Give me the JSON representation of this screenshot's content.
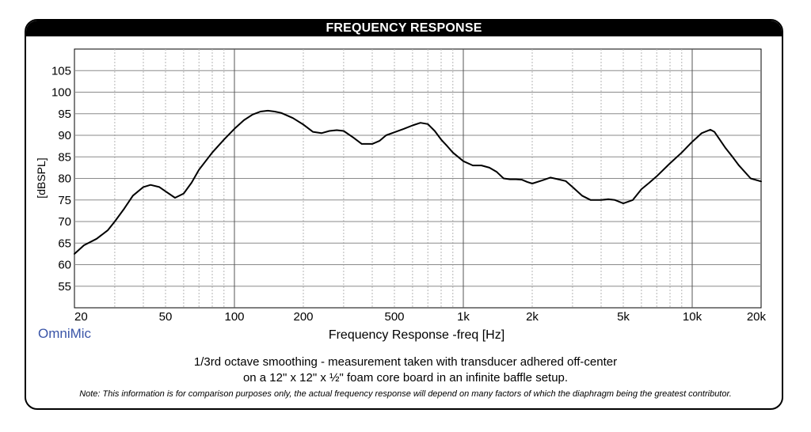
{
  "header": {
    "title": "FREQUENCY RESPONSE"
  },
  "brand": "OmniMic",
  "caption": {
    "line1": "1/3rd octave smoothing - measurement taken with transducer adhered off-center",
    "line2": "on a 12\" x 12\" x ½\" foam core board in an infinite baffle setup."
  },
  "note": "Note: This information is for comparison purposes only, the actual frequency response will depend on many factors of which the diaphragm being the greatest contributor.",
  "chart_data": {
    "type": "line",
    "title": "FREQUENCY RESPONSE",
    "xlabel": "Frequency Response -freq [Hz]",
    "ylabel": "[dBSPL]",
    "x_scale": "log",
    "xlim": [
      20,
      20000
    ],
    "ylim": [
      50,
      110
    ],
    "x_ticks": [
      {
        "value": 20,
        "label": "20"
      },
      {
        "value": 50,
        "label": "50"
      },
      {
        "value": 100,
        "label": "100"
      },
      {
        "value": 200,
        "label": "200"
      },
      {
        "value": 500,
        "label": "500"
      },
      {
        "value": 1000,
        "label": "1k"
      },
      {
        "value": 2000,
        "label": "2k"
      },
      {
        "value": 5000,
        "label": "5k"
      },
      {
        "value": 10000,
        "label": "10k"
      },
      {
        "value": 20000,
        "label": "20k"
      }
    ],
    "y_ticks": [
      55,
      60,
      65,
      70,
      75,
      80,
      85,
      90,
      95,
      100,
      105
    ],
    "grid": true,
    "line_color": "#000000",
    "series": [
      {
        "x": [
          20,
          22,
          25,
          28,
          30,
          33,
          36,
          40,
          43,
          47,
          50,
          55,
          60,
          65,
          70,
          80,
          90,
          100,
          110,
          120,
          130,
          140,
          150,
          160,
          180,
          200,
          220,
          240,
          260,
          280,
          300,
          330,
          360,
          400,
          430,
          460,
          500,
          550,
          600,
          650,
          700,
          750,
          800,
          850,
          900,
          1000,
          1100,
          1200,
          1300,
          1400,
          1500,
          1600,
          1700,
          1800,
          1900,
          2000,
          2200,
          2400,
          2600,
          2800,
          3000,
          3300,
          3600,
          4000,
          4300,
          4600,
          5000,
          5500,
          6000,
          6500,
          7000,
          8000,
          9000,
          10000,
          11000,
          12000,
          12500,
          13000,
          14000,
          15000,
          16000,
          18000,
          20000
        ],
        "y": [
          62.5,
          64.5,
          66,
          68,
          70,
          73,
          76,
          78,
          78.5,
          78,
          77,
          75.5,
          76.5,
          79,
          82,
          86,
          89,
          91.5,
          93.5,
          94.8,
          95.5,
          95.7,
          95.5,
          95.2,
          94,
          92.5,
          90.8,
          90.5,
          91,
          91.2,
          91,
          89.5,
          88,
          88,
          88.7,
          90,
          90.7,
          91.5,
          92.3,
          92.9,
          92.6,
          91,
          89,
          87.5,
          86,
          84,
          83,
          83,
          82.5,
          81.5,
          80,
          79.8,
          79.8,
          79.7,
          79.2,
          78.8,
          79.5,
          80.2,
          79.8,
          79.4,
          78,
          76,
          75,
          75,
          75.2,
          75,
          74.2,
          75,
          77.5,
          79,
          80.5,
          83.5,
          86,
          88.5,
          90.5,
          91.3,
          90.8,
          89.5,
          87,
          85,
          83,
          80,
          79.3
        ]
      }
    ]
  }
}
